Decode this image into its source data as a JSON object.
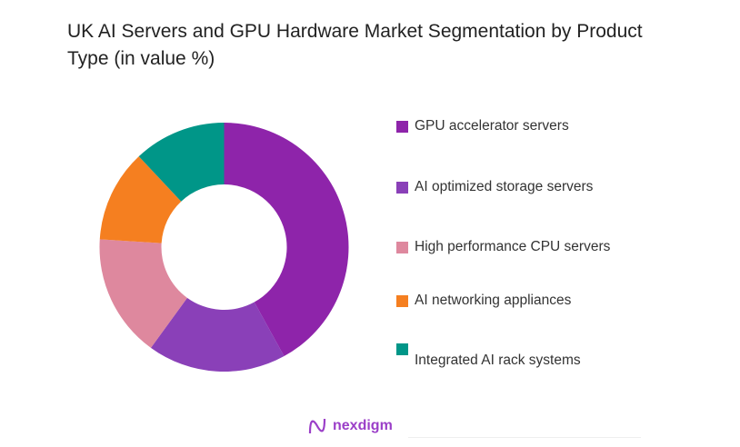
{
  "chart_data": {
    "type": "pie",
    "donut": true,
    "title": "UK AI Servers and GPU Hardware Market Segmentation by Product Type (in value %)",
    "categories": [
      "GPU accelerator servers",
      "AI optimized storage servers",
      "High performance CPU servers",
      "AI networking appliances",
      "Integrated AI rack systems"
    ],
    "values": [
      42,
      18,
      16,
      12,
      12
    ],
    "colors": [
      "#8e24aa",
      "#8a40b8",
      "#de889e",
      "#f57f20",
      "#009688"
    ],
    "legend_position": "right"
  },
  "branding": {
    "logo_text": "nexdigm"
  }
}
